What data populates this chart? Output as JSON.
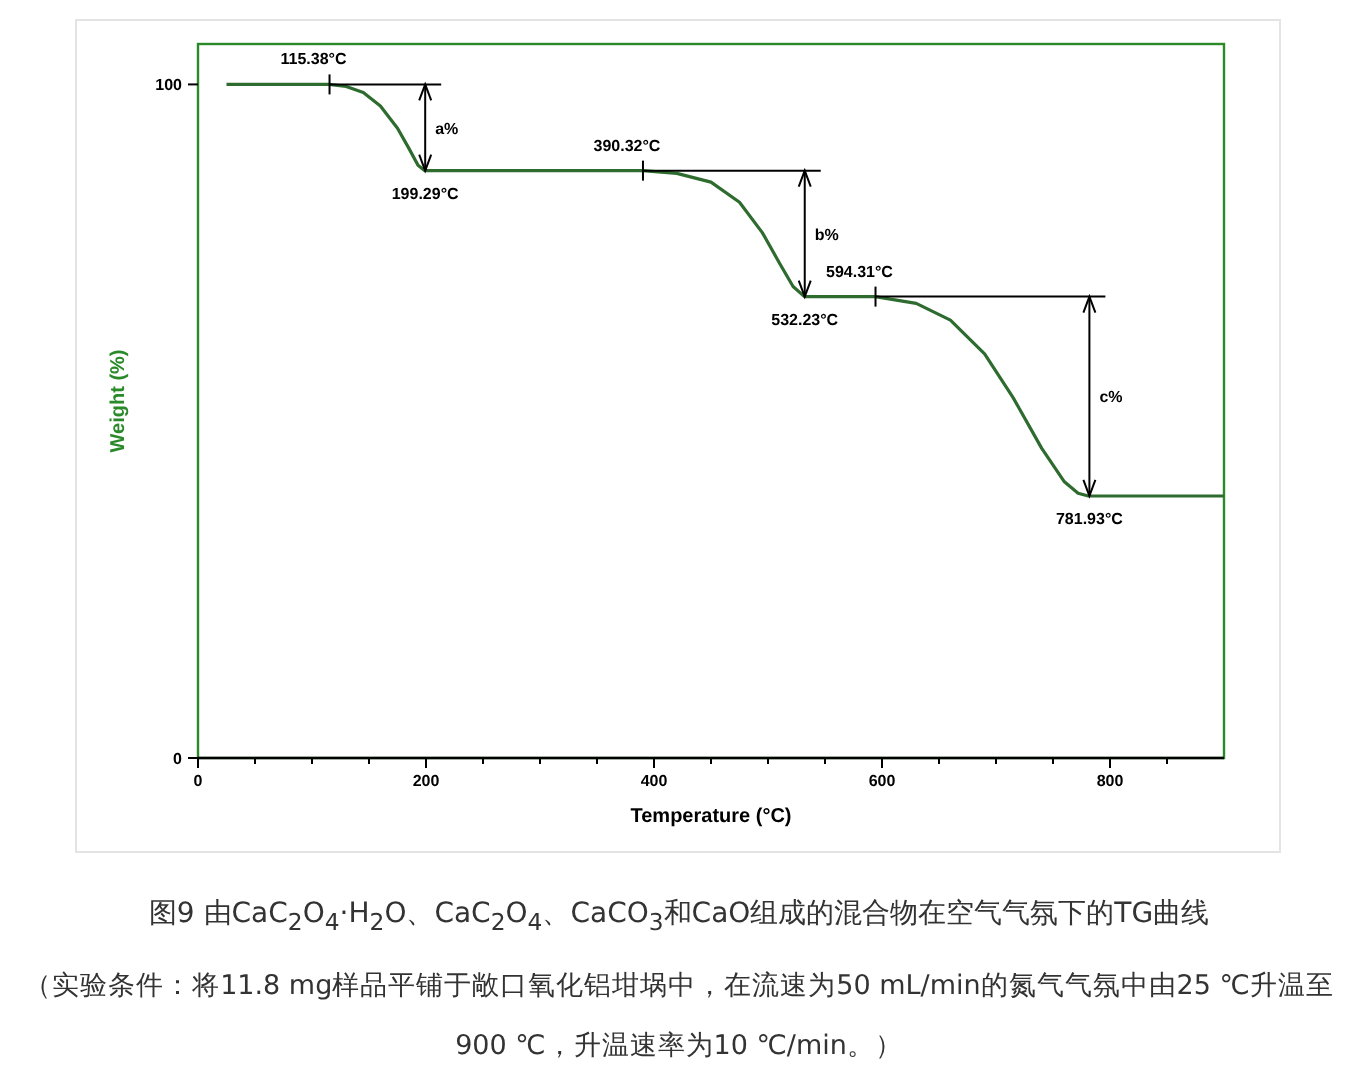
{
  "chart_data": {
    "type": "line",
    "title": "图9  由CaC$_{2}$O$_{4}$·H$_{2}$O、CaC$_{2}$O$_{4}$、CaCO$_{3}$和CaO组成的混合物在空气气氛下的TG曲线",
    "subtitle": "（实验条件：将11.8 mg样品平铺于敞口氧化铝坩埚中，在流速为50 mL/min的氮气气氛中由25 ℃升温至900 ℃，升温速率为10 ℃/min。）",
    "xlabel": "Temperature (°C)",
    "ylabel": "Weight (%)",
    "series": [
      {
        "color": "#2e6b2e",
        "x": [
          25,
          115,
          130,
          145,
          160,
          175,
          185,
          193,
          199,
          390,
          420,
          450,
          475,
          495,
          510,
          522,
          532,
          594,
          630,
          660,
          690,
          715,
          740,
          760,
          772,
          781,
          900
        ],
        "values": [
          100,
          100,
          99.7,
          98.8,
          96.8,
          93.5,
          90.5,
          88,
          87.2,
          87.2,
          86.8,
          85.5,
          82.5,
          78,
          73.5,
          70,
          68.5,
          68.5,
          67.5,
          65,
          60,
          53.5,
          46,
          41,
          39.3,
          38.9,
          38.9
        ]
      }
    ],
    "xlim": [
      0,
      900
    ],
    "ylim": [
      0,
      106
    ],
    "xticks": [
      0,
      {
        "value": 50,
        "label": null
      },
      {
        "value": 100,
        "label": null
      },
      {
        "value": 150,
        "label": null
      },
      200,
      {
        "value": 250,
        "label": null
      },
      {
        "value": 300,
        "label": null
      },
      {
        "value": 350,
        "label": null
      },
      400,
      {
        "value": 450,
        "label": null
      },
      {
        "value": 500,
        "label": null
      },
      {
        "value": 550,
        "label": null
      },
      600,
      {
        "value": 650,
        "label": null
      },
      {
        "value": 700,
        "label": null
      },
      {
        "value": 750,
        "label": null
      },
      800,
      {
        "value": 850,
        "label": null
      }
    ],
    "yticks": [
      0,
      100
    ],
    "annotations": [
      {
        "text": "115.38°C",
        "x": 115.38,
        "y": 100
      },
      {
        "text": "199.29°C",
        "x": 199.29,
        "y": 87.2
      },
      {
        "text": "390.32°C",
        "x": 390.32,
        "y": 87.2
      },
      {
        "text": "532.23°C",
        "x": 532.23,
        "y": 68.5
      },
      {
        "text": "594.31°C",
        "x": 594.31,
        "y": 68.5
      },
      {
        "text": "781.93°C",
        "x": 781.93,
        "y": 38.9
      },
      "a%",
      "b%",
      "c%"
    ]
  }
}
